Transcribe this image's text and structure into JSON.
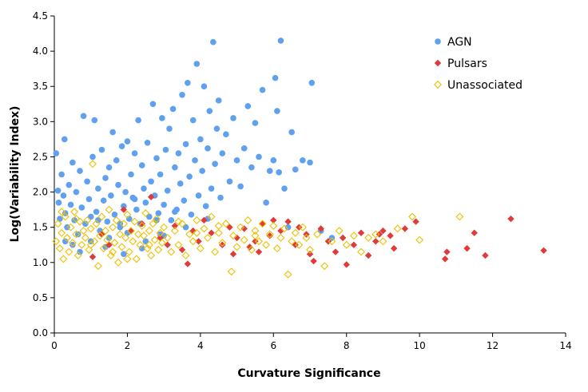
{
  "chart_data": {
    "type": "scatter",
    "title": "",
    "xlabel": "Curvature Significance",
    "ylabel": "Log(Variability Index)",
    "xlim": [
      0,
      14
    ],
    "ylim": [
      0,
      4.5
    ],
    "x_ticks": [
      "0",
      "2",
      "4",
      "6",
      "8",
      "10",
      "12",
      "14"
    ],
    "y_ticks": [
      "0.0",
      "0.5",
      "1.0",
      "1.5",
      "2.0",
      "2.5",
      "3.0",
      "3.5",
      "4.0",
      "4.5"
    ],
    "grid": false,
    "legend_position": "top-right",
    "series": [
      {
        "name": "AGN",
        "marker": "circle",
        "color": "#5fa0f0",
        "points": [
          [
            0.05,
            2.55
          ],
          [
            0.1,
            2.02
          ],
          [
            0.12,
            1.85
          ],
          [
            0.15,
            1.62
          ],
          [
            0.2,
            2.25
          ],
          [
            0.25,
            1.95
          ],
          [
            0.28,
            2.75
          ],
          [
            0.3,
            1.7
          ],
          [
            0.35,
            1.5
          ],
          [
            0.4,
            2.1
          ],
          [
            0.45,
            1.82
          ],
          [
            0.5,
            2.42
          ],
          [
            0.55,
            1.6
          ],
          [
            0.6,
            2.0
          ],
          [
            0.65,
            1.4
          ],
          [
            0.7,
            2.3
          ],
          [
            0.75,
            1.78
          ],
          [
            0.8,
            3.08
          ],
          [
            0.85,
            1.55
          ],
          [
            0.9,
            2.15
          ],
          [
            0.95,
            1.9
          ],
          [
            1.0,
            1.65
          ],
          [
            1.05,
            2.5
          ],
          [
            1.1,
            3.02
          ],
          [
            1.15,
            1.72
          ],
          [
            1.2,
            2.05
          ],
          [
            1.25,
            1.45
          ],
          [
            1.3,
            2.6
          ],
          [
            1.35,
            1.88
          ],
          [
            1.4,
            2.2
          ],
          [
            1.45,
            1.58
          ],
          [
            1.5,
            2.35
          ],
          [
            1.55,
            1.95
          ],
          [
            1.6,
            2.85
          ],
          [
            1.65,
            1.68
          ],
          [
            1.7,
            2.45
          ],
          [
            1.75,
            2.1
          ],
          [
            1.8,
            1.5
          ],
          [
            1.85,
            2.65
          ],
          [
            1.9,
            1.8
          ],
          [
            1.95,
            2.0
          ],
          [
            2.0,
            2.72
          ],
          [
            2.05,
            1.62
          ],
          [
            2.1,
            2.25
          ],
          [
            2.15,
            1.92
          ],
          [
            2.2,
            2.55
          ],
          [
            2.25,
            1.75
          ],
          [
            2.3,
            3.02
          ],
          [
            2.35,
            1.55
          ],
          [
            2.4,
            2.38
          ],
          [
            2.45,
            2.05
          ],
          [
            2.5,
            1.85
          ],
          [
            2.55,
            2.7
          ],
          [
            2.6,
            1.65
          ],
          [
            2.65,
            2.15
          ],
          [
            2.7,
            3.25
          ],
          [
            2.75,
            1.95
          ],
          [
            2.8,
            2.48
          ],
          [
            2.85,
            1.7
          ],
          [
            2.9,
            2.25
          ],
          [
            2.95,
            3.05
          ],
          [
            3.0,
            1.82
          ],
          [
            3.05,
            2.6
          ],
          [
            3.1,
            2.02
          ],
          [
            3.15,
            2.9
          ],
          [
            3.2,
            1.6
          ],
          [
            3.25,
            3.18
          ],
          [
            3.3,
            2.35
          ],
          [
            3.35,
            1.75
          ],
          [
            3.4,
            2.55
          ],
          [
            3.45,
            2.12
          ],
          [
            3.5,
            3.38
          ],
          [
            3.55,
            1.88
          ],
          [
            3.6,
            2.68
          ],
          [
            3.65,
            3.55
          ],
          [
            3.7,
            2.22
          ],
          [
            3.75,
            1.68
          ],
          [
            3.8,
            3.02
          ],
          [
            3.85,
            2.45
          ],
          [
            3.9,
            3.82
          ],
          [
            3.95,
            1.95
          ],
          [
            4.0,
            2.75
          ],
          [
            4.05,
            2.3
          ],
          [
            4.1,
            3.5
          ],
          [
            4.15,
            1.8
          ],
          [
            4.2,
            2.62
          ],
          [
            4.25,
            3.15
          ],
          [
            4.3,
            2.05
          ],
          [
            4.35,
            4.13
          ],
          [
            4.4,
            2.4
          ],
          [
            4.45,
            2.9
          ],
          [
            4.5,
            3.3
          ],
          [
            4.55,
            1.92
          ],
          [
            4.6,
            2.55
          ],
          [
            4.7,
            2.82
          ],
          [
            4.8,
            2.15
          ],
          [
            4.9,
            3.05
          ],
          [
            5.0,
            2.45
          ],
          [
            5.1,
            2.08
          ],
          [
            5.2,
            2.62
          ],
          [
            5.3,
            3.22
          ],
          [
            5.4,
            2.35
          ],
          [
            5.5,
            2.98
          ],
          [
            5.6,
            2.5
          ],
          [
            5.7,
            3.45
          ],
          [
            5.8,
            1.85
          ],
          [
            5.9,
            2.3
          ],
          [
            6.0,
            2.45
          ],
          [
            6.05,
            3.62
          ],
          [
            6.1,
            3.15
          ],
          [
            6.15,
            2.28
          ],
          [
            6.2,
            4.15
          ],
          [
            6.3,
            2.05
          ],
          [
            6.4,
            1.5
          ],
          [
            6.5,
            2.85
          ],
          [
            6.6,
            2.32
          ],
          [
            6.8,
            2.45
          ],
          [
            7.0,
            2.42
          ],
          [
            7.05,
            3.55
          ],
          [
            7.3,
            1.45
          ],
          [
            7.6,
            1.35
          ],
          [
            1.0,
            1.3
          ],
          [
            1.5,
            1.35
          ],
          [
            2.0,
            1.42
          ],
          [
            0.5,
            1.25
          ],
          [
            2.5,
            1.3
          ],
          [
            3.0,
            1.38
          ],
          [
            1.2,
            1.6
          ],
          [
            1.8,
            1.55
          ],
          [
            2.2,
            1.9
          ],
          [
            2.8,
            1.6
          ],
          [
            3.3,
            1.72
          ],
          [
            0.3,
            1.3
          ],
          [
            0.7,
            1.15
          ],
          [
            1.4,
            1.22
          ],
          [
            1.9,
            1.12
          ],
          [
            2.4,
            1.2
          ],
          [
            2.9,
            1.4
          ],
          [
            3.6,
            1.5
          ],
          [
            4.2,
            1.62
          ]
        ]
      },
      {
        "name": "Pulsars",
        "marker": "diamond",
        "color": "#e03a3a",
        "points": [
          [
            1.05,
            1.08
          ],
          [
            1.3,
            1.4
          ],
          [
            1.5,
            1.25
          ],
          [
            1.9,
            1.75
          ],
          [
            2.1,
            1.45
          ],
          [
            2.4,
            1.55
          ],
          [
            2.65,
            1.93
          ],
          [
            2.9,
            1.35
          ],
          [
            3.1,
            1.25
          ],
          [
            3.3,
            1.52
          ],
          [
            3.5,
            1.18
          ],
          [
            3.65,
            0.98
          ],
          [
            3.8,
            1.45
          ],
          [
            3.95,
            1.3
          ],
          [
            4.1,
            1.6
          ],
          [
            4.3,
            1.42
          ],
          [
            4.6,
            1.25
          ],
          [
            4.8,
            1.5
          ],
          [
            5.0,
            1.35
          ],
          [
            5.2,
            1.48
          ],
          [
            5.5,
            1.3
          ],
          [
            5.7,
            1.55
          ],
          [
            5.9,
            1.38
          ],
          [
            6.2,
            1.45
          ],
          [
            6.4,
            1.58
          ],
          [
            6.6,
            1.25
          ],
          [
            6.9,
            1.4
          ],
          [
            7.0,
            1.12
          ],
          [
            7.1,
            1.02
          ],
          [
            7.3,
            1.48
          ],
          [
            7.5,
            1.3
          ],
          [
            7.7,
            1.15
          ],
          [
            7.9,
            1.35
          ],
          [
            8.0,
            0.97
          ],
          [
            8.2,
            1.25
          ],
          [
            8.4,
            1.42
          ],
          [
            8.6,
            1.1
          ],
          [
            8.8,
            1.3
          ],
          [
            9.0,
            1.45
          ],
          [
            9.2,
            1.38
          ],
          [
            9.3,
            1.2
          ],
          [
            9.6,
            1.48
          ],
          [
            9.9,
            1.58
          ],
          [
            10.7,
            1.05
          ],
          [
            10.75,
            1.15
          ],
          [
            11.3,
            1.2
          ],
          [
            11.5,
            1.42
          ],
          [
            11.8,
            1.1
          ],
          [
            12.5,
            1.62
          ],
          [
            13.4,
            1.17
          ],
          [
            5.6,
            1.15
          ],
          [
            6.0,
            1.6
          ],
          [
            4.9,
            1.12
          ],
          [
            5.35,
            1.22
          ],
          [
            6.7,
            1.5
          ],
          [
            8.9,
            1.4
          ]
        ]
      },
      {
        "name": "Unassociated",
        "marker": "open-diamond",
        "color": "#f0c000",
        "points": [
          [
            0.05,
            1.3
          ],
          [
            0.1,
            1.55
          ],
          [
            0.15,
            1.2
          ],
          [
            0.2,
            1.42
          ],
          [
            0.25,
            1.05
          ],
          [
            0.3,
            1.65
          ],
          [
            0.35,
            1.35
          ],
          [
            0.4,
            1.15
          ],
          [
            0.45,
            1.5
          ],
          [
            0.5,
            1.28
          ],
          [
            0.55,
            1.72
          ],
          [
            0.6,
            1.4
          ],
          [
            0.65,
            1.1
          ],
          [
            0.7,
            1.58
          ],
          [
            0.75,
            1.25
          ],
          [
            0.8,
            1.45
          ],
          [
            0.85,
            1.35
          ],
          [
            0.9,
            1.6
          ],
          [
            0.95,
            1.18
          ],
          [
            1.0,
            1.48
          ],
          [
            1.05,
            2.4
          ],
          [
            1.1,
            1.3
          ],
          [
            1.15,
            1.55
          ],
          [
            1.2,
            0.95
          ],
          [
            1.25,
            1.38
          ],
          [
            1.3,
            1.65
          ],
          [
            1.35,
            1.2
          ],
          [
            1.4,
            1.45
          ],
          [
            1.45,
            1.32
          ],
          [
            1.5,
            1.75
          ],
          [
            1.55,
            1.1
          ],
          [
            1.6,
            1.5
          ],
          [
            1.65,
            1.28
          ],
          [
            1.7,
            1.6
          ],
          [
            1.75,
            1.0
          ],
          [
            1.8,
            1.4
          ],
          [
            1.85,
            1.22
          ],
          [
            1.9,
            1.55
          ],
          [
            1.95,
            1.35
          ],
          [
            2.0,
            1.68
          ],
          [
            2.05,
            1.15
          ],
          [
            2.1,
            1.45
          ],
          [
            2.15,
            1.3
          ],
          [
            2.2,
            1.58
          ],
          [
            2.25,
            1.05
          ],
          [
            2.3,
            1.4
          ],
          [
            2.35,
            1.25
          ],
          [
            2.4,
            1.52
          ],
          [
            2.45,
            1.38
          ],
          [
            2.5,
            1.7
          ],
          [
            2.55,
            1.2
          ],
          [
            2.6,
            1.45
          ],
          [
            2.65,
            1.1
          ],
          [
            2.7,
            1.55
          ],
          [
            2.75,
            1.32
          ],
          [
            2.8,
            1.62
          ],
          [
            2.85,
            1.18
          ],
          [
            2.9,
            1.42
          ],
          [
            2.95,
            1.28
          ],
          [
            3.0,
            1.5
          ],
          [
            3.1,
            1.35
          ],
          [
            3.2,
            1.15
          ],
          [
            3.3,
            1.45
          ],
          [
            3.4,
            1.25
          ],
          [
            3.5,
            1.55
          ],
          [
            3.6,
            1.1
          ],
          [
            3.7,
            1.4
          ],
          [
            3.8,
            1.3
          ],
          [
            3.9,
            1.6
          ],
          [
            4.0,
            1.2
          ],
          [
            4.1,
            1.48
          ],
          [
            4.2,
            1.35
          ],
          [
            4.3,
            1.65
          ],
          [
            4.4,
            1.15
          ],
          [
            4.5,
            1.42
          ],
          [
            4.6,
            1.28
          ],
          [
            4.7,
            1.55
          ],
          [
            4.85,
            0.87
          ],
          [
            4.9,
            1.38
          ],
          [
            5.0,
            1.22
          ],
          [
            5.1,
            1.5
          ],
          [
            5.2,
            1.32
          ],
          [
            5.3,
            1.6
          ],
          [
            5.4,
            1.18
          ],
          [
            5.5,
            1.45
          ],
          [
            5.6,
            1.3
          ],
          [
            5.7,
            1.55
          ],
          [
            5.8,
            1.25
          ],
          [
            5.9,
            1.4
          ],
          [
            6.0,
            1.52
          ],
          [
            6.1,
            1.2
          ],
          [
            6.2,
            1.35
          ],
          [
            6.3,
            1.48
          ],
          [
            6.4,
            0.83
          ],
          [
            6.5,
            1.3
          ],
          [
            6.6,
            1.42
          ],
          [
            6.7,
            1.25
          ],
          [
            6.8,
            1.5
          ],
          [
            6.9,
            1.35
          ],
          [
            7.0,
            1.18
          ],
          [
            7.2,
            1.4
          ],
          [
            7.4,
            0.95
          ],
          [
            7.6,
            1.3
          ],
          [
            7.8,
            1.45
          ],
          [
            8.0,
            1.25
          ],
          [
            8.2,
            1.38
          ],
          [
            8.4,
            1.15
          ],
          [
            8.6,
            1.35
          ],
          [
            8.8,
            1.4
          ],
          [
            9.0,
            1.3
          ],
          [
            9.4,
            1.48
          ],
          [
            9.8,
            1.65
          ],
          [
            10.0,
            1.32
          ],
          [
            11.1,
            1.65
          ],
          [
            0.2,
            1.72
          ],
          [
            0.6,
            1.62
          ],
          [
            1.0,
            1.25
          ],
          [
            1.6,
            1.15
          ],
          [
            2.0,
            1.05
          ],
          [
            2.6,
            1.25
          ],
          [
            3.4,
            1.58
          ],
          [
            3.9,
            1.42
          ],
          [
            4.5,
            1.52
          ],
          [
            5.5,
            1.38
          ]
        ]
      }
    ]
  }
}
